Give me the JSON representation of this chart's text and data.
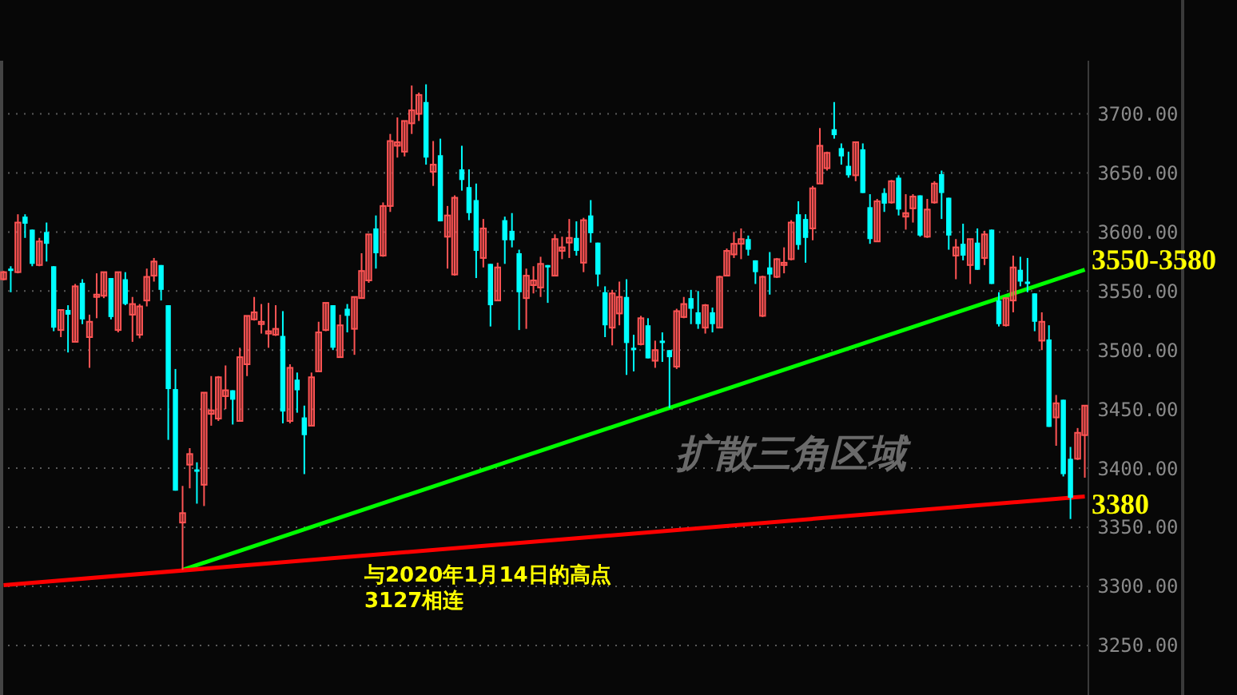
{
  "chart_data": {
    "type": "candlestick",
    "categories": [
      null,
      null,
      null,
      null,
      null,
      null,
      null,
      null,
      null,
      null,
      null,
      null,
      null,
      null,
      null,
      null,
      null,
      null,
      null,
      null,
      null,
      null,
      null,
      null,
      null,
      null,
      null,
      null,
      null,
      null,
      null,
      null,
      null,
      null,
      null,
      null,
      null,
      null,
      null,
      null,
      null,
      null,
      null,
      null,
      null,
      null,
      null,
      null,
      null,
      null,
      null,
      null,
      null,
      null,
      null,
      null,
      null,
      null,
      null,
      null,
      null,
      null,
      null,
      null,
      null,
      null,
      null,
      null,
      null,
      null,
      null,
      null,
      null,
      null,
      null,
      null,
      null,
      null,
      null,
      null,
      null,
      null,
      null,
      null,
      null,
      null,
      null,
      null,
      null,
      null,
      null,
      null,
      null,
      null,
      null,
      null,
      null,
      null,
      null,
      null,
      null,
      null,
      null,
      null,
      null,
      null,
      null,
      null,
      null,
      null,
      null,
      null,
      null,
      null,
      null,
      null,
      null,
      null,
      null,
      null,
      null,
      null,
      null,
      null,
      null,
      null,
      null,
      null,
      null,
      null,
      null,
      null,
      null,
      null,
      null,
      null,
      null,
      null,
      null,
      null,
      null,
      null,
      null,
      null,
      null,
      null,
      null,
      null,
      null,
      null,
      null,
      null
    ],
    "ohlc": [
      [
        3560,
        3567,
        3559,
        3566
      ],
      [
        3569,
        3571,
        3549,
        3567
      ],
      [
        3566,
        3615,
        3565,
        3608
      ],
      [
        3613,
        3615,
        3595,
        3607
      ],
      [
        3602,
        3602,
        3571,
        3573
      ],
      [
        3572,
        3595,
        3571,
        3592
      ],
      [
        3600,
        3608,
        3575,
        3590
      ],
      [
        3571,
        3571,
        3516,
        3519
      ],
      [
        3517,
        3534,
        3511,
        3534
      ],
      [
        3534,
        3538,
        3498,
        3530
      ],
      [
        3507,
        3556,
        3507,
        3554
      ],
      [
        3557,
        3560,
        3522,
        3526
      ],
      [
        3511,
        3530,
        3485,
        3524
      ],
      [
        3545,
        3565,
        3527,
        3547
      ],
      [
        3546,
        3566,
        3544,
        3566
      ],
      [
        3561,
        3561,
        3526,
        3528
      ],
      [
        3517,
        3566,
        3515,
        3566
      ],
      [
        3560,
        3566,
        3538,
        3539
      ],
      [
        3530,
        3545,
        3507,
        3539
      ],
      [
        3513,
        3539,
        3510,
        3537
      ],
      [
        3542,
        3569,
        3537,
        3562
      ],
      [
        3563,
        3578,
        3558,
        3575
      ],
      [
        3572,
        3572,
        3542,
        3551
      ],
      [
        3538,
        3538,
        3424,
        3467
      ],
      [
        3467,
        3484,
        3381,
        3381
      ],
      [
        3354,
        3385,
        3314,
        3362
      ],
      [
        3403,
        3417,
        3383,
        3412
      ],
      [
        3399,
        3405,
        3370,
        3397
      ],
      [
        3386,
        3464,
        3368,
        3464
      ],
      [
        3446,
        3478,
        3436,
        3449
      ],
      [
        3442,
        3478,
        3440,
        3477
      ],
      [
        3461,
        3487,
        3450,
        3466
      ],
      [
        3466,
        3466,
        3437,
        3458
      ],
      [
        3440,
        3502,
        3440,
        3494
      ],
      [
        3488,
        3529,
        3478,
        3529
      ],
      [
        3526,
        3545,
        3525,
        3532
      ],
      [
        3522,
        3539,
        3514,
        3524
      ],
      [
        3514,
        3540,
        3502,
        3516
      ],
      [
        3513,
        3538,
        3512,
        3518
      ],
      [
        3512,
        3533,
        3438,
        3448
      ],
      [
        3440,
        3488,
        3438,
        3485
      ],
      [
        3475,
        3481,
        3447,
        3466
      ],
      [
        3443,
        3453,
        3395,
        3428
      ],
      [
        3436,
        3481,
        3436,
        3477
      ],
      [
        3482,
        3524,
        3482,
        3515
      ],
      [
        3517,
        3540,
        3516,
        3540
      ],
      [
        3538,
        3538,
        3500,
        3502
      ],
      [
        3494,
        3530,
        3494,
        3521
      ],
      [
        3535,
        3539,
        3515,
        3529
      ],
      [
        3518,
        3545,
        3496,
        3545
      ],
      [
        3544,
        3582,
        3544,
        3567
      ],
      [
        3559,
        3598,
        3557,
        3598
      ],
      [
        3603,
        3614,
        3569,
        3582
      ],
      [
        3580,
        3625,
        3579,
        3622
      ],
      [
        3622,
        3683,
        3617,
        3677
      ],
      [
        3673,
        3697,
        3663,
        3676
      ],
      [
        3668,
        3694,
        3664,
        3694
      ],
      [
        3692,
        3724,
        3683,
        3703
      ],
      [
        3700,
        3718,
        3694,
        3716
      ],
      [
        3710,
        3725,
        3657,
        3663
      ],
      [
        3651,
        3677,
        3639,
        3657
      ],
      [
        3665,
        3679,
        3609,
        3609
      ],
      [
        3596,
        3622,
        3569,
        3614
      ],
      [
        3564,
        3631,
        3563,
        3629
      ],
      [
        3653,
        3673,
        3635,
        3644
      ],
      [
        3638,
        3653,
        3610,
        3616
      ],
      [
        3627,
        3641,
        3561,
        3584
      ],
      [
        3578,
        3611,
        3570,
        3603
      ],
      [
        3573,
        3573,
        3520,
        3538
      ],
      [
        3542,
        3574,
        3542,
        3570
      ],
      [
        3610,
        3613,
        3573,
        3593
      ],
      [
        3601,
        3616,
        3587,
        3593
      ],
      [
        3582,
        3585,
        3517,
        3549
      ],
      [
        3544,
        3569,
        3518,
        3563
      ],
      [
        3555,
        3571,
        3548,
        3559
      ],
      [
        3553,
        3579,
        3545,
        3573
      ],
      [
        3572,
        3572,
        3540,
        3570
      ],
      [
        3563,
        3598,
        3563,
        3594
      ],
      [
        3584,
        3596,
        3577,
        3587
      ],
      [
        3591,
        3611,
        3578,
        3595
      ],
      [
        3595,
        3609,
        3580,
        3584
      ],
      [
        3574,
        3612,
        3566,
        3610
      ],
      [
        3614,
        3627,
        3591,
        3599
      ],
      [
        3591,
        3591,
        3554,
        3564
      ],
      [
        3549,
        3554,
        3511,
        3521
      ],
      [
        3519,
        3551,
        3504,
        3548
      ],
      [
        3531,
        3558,
        3521,
        3545
      ],
      [
        3545,
        3560,
        3479,
        3506
      ],
      [
        3502,
        3513,
        3482,
        3500
      ],
      [
        3505,
        3529,
        3504,
        3527
      ],
      [
        3521,
        3527,
        3493,
        3493
      ],
      [
        3491,
        3508,
        3485,
        3500
      ],
      [
        3508,
        3515,
        3490,
        3506
      ],
      [
        3500,
        3500,
        3451,
        3494
      ],
      [
        3486,
        3535,
        3484,
        3533
      ],
      [
        3528,
        3545,
        3527,
        3539
      ],
      [
        3544,
        3551,
        3522,
        3535
      ],
      [
        3532,
        3550,
        3518,
        3522
      ],
      [
        3519,
        3539,
        3514,
        3538
      ],
      [
        3532,
        3536,
        3515,
        3522
      ],
      [
        3519,
        3563,
        3519,
        3562
      ],
      [
        3563,
        3586,
        3563,
        3584
      ],
      [
        3581,
        3600,
        3578,
        3590
      ],
      [
        3590,
        3603,
        3577,
        3594
      ],
      [
        3594,
        3597,
        3580,
        3585
      ],
      [
        3576,
        3576,
        3556,
        3566
      ],
      [
        3529,
        3563,
        3528,
        3562
      ],
      [
        3570,
        3583,
        3547,
        3564
      ],
      [
        3562,
        3578,
        3561,
        3577
      ],
      [
        3572,
        3587,
        3565,
        3574
      ],
      [
        3577,
        3610,
        3576,
        3608
      ],
      [
        3615,
        3626,
        3585,
        3589
      ],
      [
        3611,
        3615,
        3574,
        3595
      ],
      [
        3603,
        3639,
        3593,
        3637
      ],
      [
        3641,
        3688,
        3641,
        3673
      ],
      [
        3654,
        3668,
        3652,
        3667
      ],
      [
        3687,
        3710,
        3679,
        3682
      ],
      [
        3671,
        3675,
        3657,
        3664
      ],
      [
        3656,
        3668,
        3646,
        3648
      ],
      [
        3648,
        3676,
        3643,
        3676
      ],
      [
        3670,
        3675,
        3633,
        3633
      ],
      [
        3621,
        3632,
        3590,
        3594
      ],
      [
        3592,
        3628,
        3592,
        3626
      ],
      [
        3633,
        3637,
        3617,
        3624
      ],
      [
        3625,
        3644,
        3624,
        3643
      ],
      [
        3646,
        3648,
        3614,
        3619
      ],
      [
        3613,
        3632,
        3602,
        3616
      ],
      [
        3620,
        3632,
        3608,
        3630
      ],
      [
        3631,
        3631,
        3596,
        3597
      ],
      [
        3596,
        3628,
        3595,
        3619
      ],
      [
        3625,
        3643,
        3624,
        3641
      ],
      [
        3649,
        3652,
        3611,
        3633
      ],
      [
        3629,
        3629,
        3585,
        3597
      ],
      [
        3580,
        3594,
        3560,
        3587
      ],
      [
        3590,
        3607,
        3576,
        3580
      ],
      [
        3572,
        3594,
        3556,
        3594
      ],
      [
        3591,
        3603,
        3568,
        3568
      ],
      [
        3578,
        3601,
        3572,
        3598
      ],
      [
        3602,
        3602,
        3556,
        3556
      ],
      [
        3542,
        3549,
        3520,
        3522
      ],
      [
        3521,
        3544,
        3520,
        3544
      ],
      [
        3542,
        3580,
        3532,
        3570
      ],
      [
        3568,
        3579,
        3554,
        3558
      ],
      [
        3558,
        3578,
        3549,
        3556
      ],
      [
        3548,
        3548,
        3516,
        3524
      ],
      [
        3508,
        3532,
        3500,
        3524
      ],
      [
        3509,
        3521,
        3435,
        3435
      ],
      [
        3443,
        3462,
        3419,
        3455
      ],
      [
        3458,
        3458,
        3393,
        3395
      ],
      [
        3408,
        3418,
        3357,
        3375
      ],
      [
        3408,
        3434,
        3407,
        3430
      ],
      [
        3428,
        3453,
        3392,
        3453
      ]
    ],
    "colors": [
      "#ff5454",
      "#00ffff",
      "#ff5454",
      "#00ffff",
      "#00ffff",
      "#ff5454",
      "#00ffff",
      "#00ffff",
      "#ff5454",
      "#00ffff",
      "#ff5454",
      "#00ffff",
      "#ff5454",
      "#ff5454",
      "#ff5454",
      "#00ffff",
      "#ff5454",
      "#00ffff",
      "#ff5454",
      "#ff5454",
      "#ff5454",
      "#ff5454",
      "#00ffff",
      "#00ffff",
      "#00ffff",
      "#ff5454",
      "#ff5454",
      "#00ffff",
      "#ff5454",
      "#ff5454",
      "#ff5454",
      "#ff5454",
      "#00ffff",
      "#ff5454",
      "#ff5454",
      "#ff5454",
      "#ff5454",
      "#ff5454",
      "#ff5454",
      "#00ffff",
      "#ff5454",
      "#00ffff",
      "#00ffff",
      "#ff5454",
      "#ff5454",
      "#ff5454",
      "#00ffff",
      "#ff5454",
      "#00ffff",
      "#ff5454",
      "#ff5454",
      "#ff5454",
      "#00ffff",
      "#ff5454",
      "#ff5454",
      "#ff5454",
      "#ff5454",
      "#ff5454",
      "#ff5454",
      "#00ffff",
      "#ff5454",
      "#00ffff",
      "#ff5454",
      "#ff5454",
      "#00ffff",
      "#00ffff",
      "#00ffff",
      "#ff5454",
      "#00ffff",
      "#ff5454",
      "#00ffff",
      "#00ffff",
      "#00ffff",
      "#ff5454",
      "#ff5454",
      "#ff5454",
      "#00ffff",
      "#ff5454",
      "#ff5454",
      "#ff5454",
      "#00ffff",
      "#ff5454",
      "#00ffff",
      "#00ffff",
      "#00ffff",
      "#ff5454",
      "#ff5454",
      "#00ffff",
      "#00ffff",
      "#ff5454",
      "#00ffff",
      "#ff5454",
      "#00ffff",
      "#00ffff",
      "#ff5454",
      "#ff5454",
      "#00ffff",
      "#00ffff",
      "#ff5454",
      "#00ffff",
      "#ff5454",
      "#ff5454",
      "#ff5454",
      "#ff5454",
      "#00ffff",
      "#00ffff",
      "#ff5454",
      "#00ffff",
      "#ff5454",
      "#ff5454",
      "#ff5454",
      "#00ffff",
      "#00ffff",
      "#ff5454",
      "#ff5454",
      "#ff5454",
      "#00ffff",
      "#00ffff",
      "#00ffff",
      "#ff5454",
      "#00ffff",
      "#00ffff",
      "#ff5454",
      "#00ffff",
      "#ff5454",
      "#00ffff",
      "#ff5454",
      "#ff5454",
      "#00ffff",
      "#ff5454",
      "#ff5454",
      "#00ffff",
      "#00ffff",
      "#ff5454",
      "#00ffff",
      "#ff5454",
      "#00ffff",
      "#ff5454",
      "#00ffff",
      "#00ffff",
      "#ff5454",
      "#ff5454",
      "#00ffff",
      "#00ffff",
      "#00ffff",
      "#ff5454",
      "#00ffff",
      "#ff5454",
      "#00ffff",
      "#00ffff",
      "#ff5454",
      "#ff5454"
    ],
    "series": [
      {
        "type": "line",
        "values": [
          null,
          null,
          null,
          null,
          null,
          null,
          null,
          null,
          null,
          null,
          null,
          null,
          null,
          null,
          null,
          null,
          null,
          null,
          null,
          null,
          null,
          null,
          null,
          null,
          null,
          3314,
          null,
          null,
          null,
          null,
          null,
          null,
          null,
          null,
          null,
          null,
          null,
          null,
          null,
          null,
          null,
          null,
          null,
          null,
          null,
          null,
          null,
          null,
          null,
          null,
          null,
          null,
          null,
          null,
          null,
          null,
          null,
          null,
          null,
          null,
          null,
          null,
          null,
          null,
          null,
          null,
          null,
          null,
          null,
          null,
          null,
          null,
          null,
          null,
          null,
          null,
          null,
          null,
          null,
          null,
          null,
          null,
          null,
          null,
          null,
          null,
          null,
          null,
          null,
          null,
          null,
          null,
          null,
          null,
          null,
          null,
          null,
          null,
          null,
          null,
          null,
          null,
          null,
          null,
          null,
          null,
          null,
          null,
          null,
          null,
          null,
          null,
          null,
          null,
          null,
          null,
          null,
          null,
          null,
          null,
          null,
          null,
          null,
          null,
          null,
          null,
          null,
          null,
          null,
          null,
          null,
          null,
          null,
          null,
          null,
          null,
          null,
          null,
          null,
          null,
          null,
          null,
          null,
          null,
          null,
          null,
          null,
          null,
          null,
          null,
          null,
          3568
        ],
        "color": "#00ff00"
      },
      {
        "type": "line",
        "values": [
          3301,
          null,
          null,
          null,
          null,
          null,
          null,
          null,
          null,
          null,
          null,
          null,
          null,
          null,
          null,
          null,
          null,
          null,
          null,
          null,
          null,
          null,
          null,
          null,
          null,
          null,
          null,
          null,
          null,
          null,
          null,
          null,
          null,
          null,
          null,
          null,
          null,
          null,
          null,
          null,
          null,
          null,
          null,
          null,
          null,
          null,
          null,
          null,
          null,
          null,
          null,
          null,
          null,
          null,
          null,
          null,
          null,
          null,
          null,
          null,
          null,
          null,
          null,
          null,
          null,
          null,
          null,
          null,
          null,
          null,
          null,
          null,
          null,
          null,
          null,
          null,
          null,
          null,
          null,
          null,
          null,
          null,
          null,
          null,
          null,
          null,
          null,
          null,
          null,
          null,
          null,
          null,
          null,
          null,
          null,
          null,
          null,
          null,
          null,
          null,
          null,
          null,
          null,
          null,
          null,
          null,
          null,
          null,
          null,
          null,
          null,
          null,
          null,
          null,
          null,
          null,
          null,
          null,
          null,
          null,
          null,
          null,
          null,
          null,
          null,
          null,
          null,
          null,
          null,
          null,
          null,
          null,
          null,
          null,
          null,
          null,
          null,
          null,
          null,
          null,
          null,
          null,
          null,
          null,
          null,
          null,
          null,
          null,
          null,
          null,
          null,
          3376
        ],
        "color": "#ff0000"
      }
    ],
    "ylim": [
      3208,
      3745
    ],
    "yticks": [
      {
        "value": 3250,
        "label": "3250.00"
      },
      {
        "value": 3300,
        "label": "3300.00"
      },
      {
        "value": 3350,
        "label": "3350.00"
      },
      {
        "value": 3400,
        "label": "3400.00"
      },
      {
        "value": 3450,
        "label": "3450.00"
      },
      {
        "value": 3500,
        "label": "3500.00"
      },
      {
        "value": 3550,
        "label": "3550.00"
      },
      {
        "value": 3600,
        "label": "3600.00"
      },
      {
        "value": 3650,
        "label": "3650.00"
      },
      {
        "value": 3700,
        "label": "3700.00"
      }
    ],
    "tick_labels": "y",
    "grid": "y",
    "annotations": [
      "3550-3580",
      "3380",
      "与2020年1月14日的高点\n3127相连",
      "扩散三角区域"
    ]
  }
}
